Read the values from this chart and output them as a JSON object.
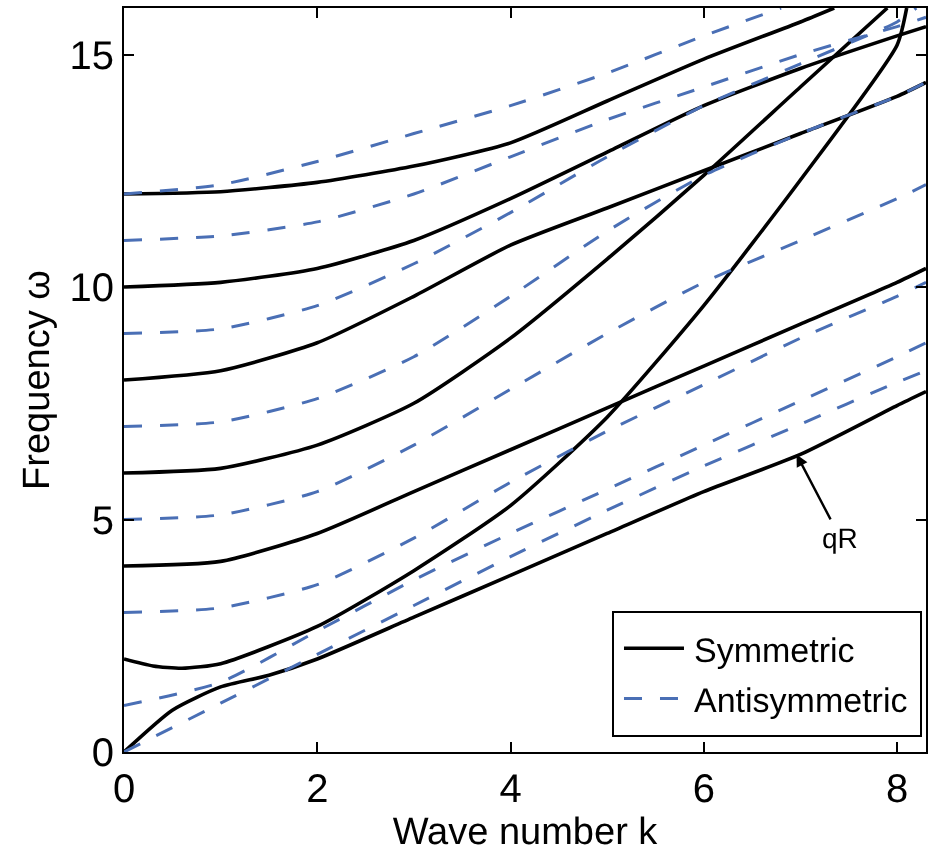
{
  "chart_data": {
    "type": "line",
    "xlabel": "Wave number k",
    "ylabel": "Frequency ω",
    "xlim": [
      0,
      8.3
    ],
    "ylim": [
      0,
      16
    ],
    "xticks": [
      0,
      2,
      4,
      6,
      8
    ],
    "yticks": [
      0,
      5,
      10,
      15
    ],
    "grid": false,
    "legend": "bottom right",
    "marker": "none",
    "series": [
      {
        "name": "Symmetric",
        "color": "#000000",
        "line_style": "solid",
        "x": [
          0,
          0.5,
          1,
          1.5,
          2,
          3,
          4,
          5,
          6,
          7,
          8,
          8.3
        ],
        "values": [
          0,
          0.9,
          1.4,
          1.65,
          2.0,
          2.9,
          3.8,
          4.7,
          5.6,
          6.4,
          7.45,
          7.75
        ]
      },
      {
        "color": "#000000",
        "line_style": "solid",
        "x": [
          0,
          0.3,
          0.6,
          1,
          2,
          3,
          4,
          5,
          6,
          7,
          8,
          8.1
        ],
        "values": [
          2,
          1.85,
          1.8,
          1.9,
          2.7,
          3.9,
          5.3,
          7.2,
          9.6,
          12.3,
          15.2,
          16
        ]
      },
      {
        "color": "#000000",
        "line_style": "solid",
        "x": [
          0,
          1,
          2,
          3,
          4,
          5,
          6,
          7,
          8,
          8.3
        ],
        "values": [
          4,
          4.1,
          4.7,
          5.6,
          6.5,
          7.4,
          8.3,
          9.2,
          10.1,
          10.4
        ]
      },
      {
        "color": "#000000",
        "line_style": "solid",
        "x": [
          0,
          1,
          2,
          3,
          4,
          5,
          6,
          7,
          7.9
        ],
        "values": [
          6,
          6.1,
          6.6,
          7.5,
          8.9,
          10.6,
          12.4,
          14.3,
          16
        ]
      },
      {
        "color": "#000000",
        "line_style": "solid",
        "x": [
          0,
          1,
          2,
          3,
          4,
          5,
          6,
          7,
          8,
          8.3
        ],
        "values": [
          8,
          8.2,
          8.8,
          9.8,
          10.9,
          11.7,
          12.5,
          13.3,
          14.1,
          14.4
        ]
      },
      {
        "color": "#000000",
        "line_style": "solid",
        "x": [
          0,
          1,
          2,
          3,
          4,
          5,
          6,
          7,
          8,
          8.3
        ],
        "values": [
          10,
          10.1,
          10.4,
          11.0,
          11.9,
          12.9,
          13.9,
          14.7,
          15.4,
          15.6
        ]
      },
      {
        "color": "#000000",
        "line_style": "solid",
        "x": [
          0,
          1,
          2,
          3,
          4,
          5,
          6,
          7,
          7.35
        ],
        "values": [
          12,
          12.05,
          12.25,
          12.6,
          13.1,
          14.0,
          14.9,
          15.7,
          16
        ]
      },
      {
        "name": "Antisymmetric",
        "color": "#4a6fb5",
        "line_style": "dashed",
        "x": [
          0,
          1,
          2,
          3,
          4,
          5,
          6,
          7,
          8,
          8.3
        ],
        "values": [
          0,
          1.05,
          2.1,
          3.15,
          4.2,
          5.2,
          6.15,
          7.05,
          7.95,
          8.2
        ]
      },
      {
        "color": "#4a6fb5",
        "line_style": "dashed",
        "x": [
          0,
          1,
          2,
          3,
          4,
          5,
          6,
          7,
          8,
          8.3
        ],
        "values": [
          1,
          1.5,
          2.6,
          3.7,
          4.7,
          5.65,
          6.6,
          7.55,
          8.5,
          8.8
        ]
      },
      {
        "color": "#4a6fb5",
        "line_style": "dashed",
        "x": [
          0,
          1,
          2,
          3,
          4,
          5,
          6,
          7,
          8,
          8.3
        ],
        "values": [
          3,
          3.1,
          3.6,
          4.6,
          5.8,
          6.9,
          7.9,
          8.9,
          9.8,
          10.1
        ]
      },
      {
        "color": "#4a6fb5",
        "line_style": "dashed",
        "x": [
          0,
          1,
          2,
          3,
          4,
          5,
          6,
          7,
          8,
          8.3
        ],
        "values": [
          5,
          5.1,
          5.6,
          6.6,
          7.8,
          9.0,
          10.1,
          11.0,
          11.9,
          12.2
        ]
      },
      {
        "color": "#4a6fb5",
        "line_style": "dashed",
        "x": [
          0,
          1,
          2,
          3,
          4,
          5,
          6,
          7,
          8,
          8.3
        ],
        "values": [
          7,
          7.1,
          7.6,
          8.5,
          9.8,
          11.2,
          12.4,
          13.3,
          14.1,
          14.4
        ]
      },
      {
        "color": "#4a6fb5",
        "line_style": "dashed",
        "x": [
          0,
          1,
          2,
          3,
          4,
          5,
          6,
          7,
          8,
          8.2
        ],
        "values": [
          9,
          9.1,
          9.6,
          10.5,
          11.6,
          12.8,
          13.9,
          14.8,
          15.7,
          16
        ]
      },
      {
        "color": "#4a6fb5",
        "line_style": "dashed",
        "x": [
          0,
          1,
          2,
          3,
          4,
          5,
          6,
          7,
          8,
          8.3
        ],
        "values": [
          11,
          11.1,
          11.4,
          12.0,
          12.8,
          13.6,
          14.3,
          15.0,
          15.6,
          15.8
        ]
      },
      {
        "color": "#4a6fb5",
        "line_style": "dashed",
        "x": [
          0,
          1,
          2,
          3,
          4,
          5,
          6,
          6.8
        ],
        "values": [
          12,
          12.2,
          12.7,
          13.3,
          13.9,
          14.6,
          15.4,
          16
        ]
      }
    ],
    "annotations": [
      {
        "text": "qR",
        "x": 6.96,
        "y": 6.4
      }
    ]
  }
}
